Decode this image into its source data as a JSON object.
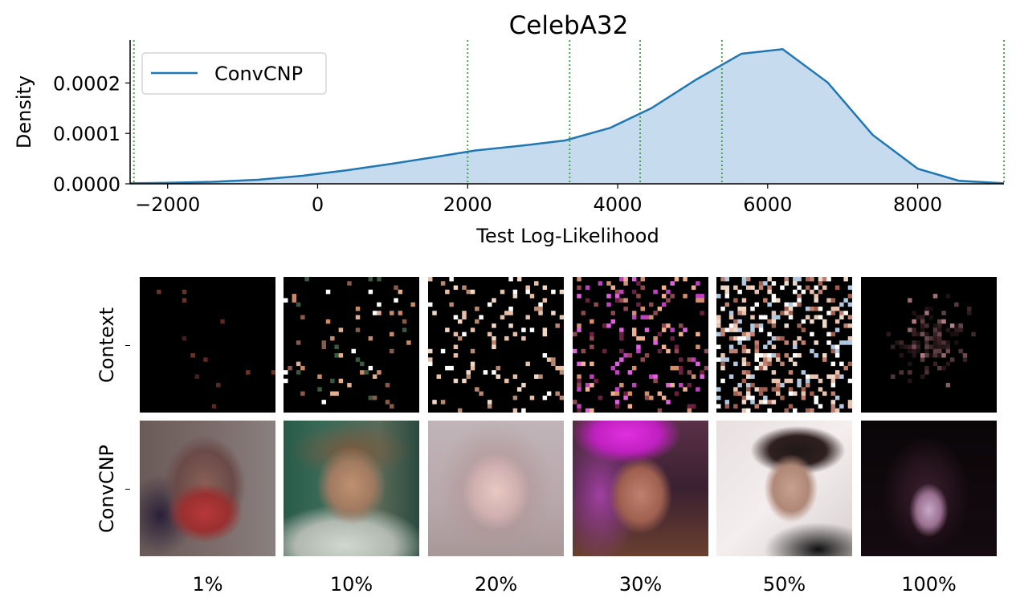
{
  "chart_data": {
    "type": "area",
    "title": "CelebA32",
    "xlabel": "Test Log-Likelihood",
    "ylabel": "Density",
    "xlim": [
      -2500,
      9150
    ],
    "ylim": [
      0,
      0.000285
    ],
    "xticks": [
      -2000,
      0,
      2000,
      4000,
      6000,
      8000
    ],
    "xtick_labels": [
      "−2000",
      "0",
      "2000",
      "4000",
      "6000",
      "8000"
    ],
    "yticks": [
      0,
      0.0001,
      0.0002
    ],
    "ytick_labels": [
      "0.0000",
      "0.0001",
      "0.0002"
    ],
    "legend_position": "top-left",
    "series": [
      {
        "name": "ConvCNP",
        "color": "#1f77b4",
        "fill": "#c6dbed",
        "x": [
          -2500,
          -2000,
          -1400,
          -800,
          -200,
          400,
          1000,
          1600,
          2100,
          2800,
          3300,
          3900,
          4450,
          5050,
          5650,
          6200,
          6800,
          7400,
          8000,
          8550,
          9150
        ],
        "y": [
          1e-06,
          2e-06,
          4e-06,
          8e-06,
          1.6e-05,
          2.7e-05,
          4e-05,
          5.4e-05,
          6.6e-05,
          7.7e-05,
          8.6e-05,
          0.000111,
          0.00015,
          0.000207,
          0.000258,
          0.000267,
          0.000201,
          9.7e-05,
          3e-05,
          6e-06,
          1e-06
        ]
      }
    ],
    "vlines": {
      "color": "#2ca02c",
      "style": "dotted",
      "x": [
        -2450,
        2000,
        3360,
        4300,
        5390,
        9150
      ]
    }
  },
  "image_grid": {
    "row_labels": [
      "Context",
      "ConvCNP"
    ],
    "column_labels": [
      "1%",
      "10%",
      "20%",
      "30%",
      "50%",
      "100%"
    ]
  }
}
